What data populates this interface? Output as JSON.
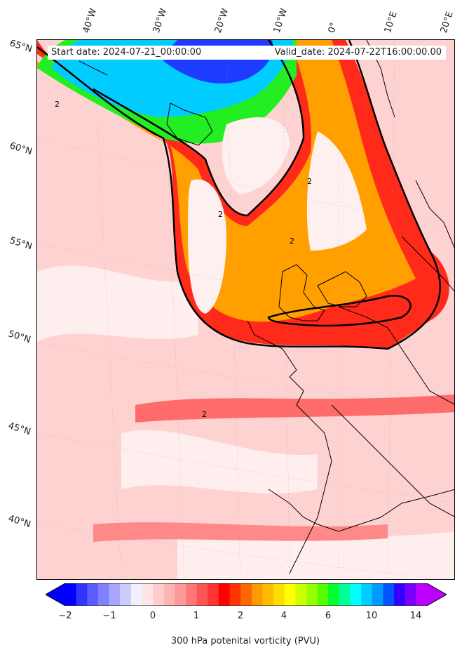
{
  "header": {
    "start_date": "Start date: 2024-07-21_00:00:00",
    "valid_date": "Valid_date: 2024-07-22T16:00:00.00"
  },
  "axes": {
    "lat_labels": [
      "65°N",
      "60°N",
      "55°N",
      "50°N",
      "45°N",
      "40°N"
    ],
    "lon_labels": [
      "40°W",
      "30°W",
      "20°W",
      "10°W",
      "0°",
      "10°E",
      "20°E"
    ]
  },
  "contour_label": "2",
  "colorbar": {
    "label": "300 hPa potenital vorticity (PVU)",
    "ticks": [
      "−2",
      "−1",
      "0",
      "1",
      "2",
      "4",
      "6",
      "10",
      "14"
    ],
    "colors": [
      "#0000ff",
      "#3333ff",
      "#5c5cff",
      "#8080ff",
      "#a6a6ff",
      "#ccccff",
      "#f0f0ff",
      "#ffe6e6",
      "#ffcccc",
      "#ffb3b3",
      "#ff9999",
      "#ff7777",
      "#ff5555",
      "#ff3333",
      "#ff0000",
      "#ff3300",
      "#ff6600",
      "#ff9900",
      "#ffbb00",
      "#ffdd00",
      "#ffff00",
      "#ccff00",
      "#99ff00",
      "#55ff00",
      "#00ff33",
      "#00ff99",
      "#00ffff",
      "#00ccff",
      "#0099ff",
      "#0055ff",
      "#3300ff",
      "#7700ff",
      "#bb00ff"
    ],
    "under_color": "#0000ff",
    "over_color": "#bb00ff"
  }
}
